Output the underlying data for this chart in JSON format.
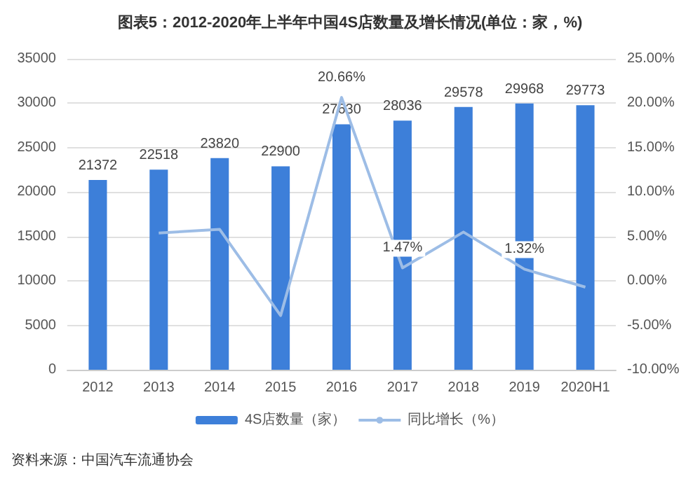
{
  "chart_data": {
    "type": "bar",
    "title": "图表5：2012-2020年上半年中国4S店数量及增长情况(单位：家，%)",
    "categories": [
      "2012",
      "2013",
      "2014",
      "2015",
      "2016",
      "2017",
      "2018",
      "2019",
      "2020H1"
    ],
    "series": [
      {
        "name": "4S店数量（家）",
        "color": "#3d7fd9",
        "values": [
          21372,
          22518,
          23820,
          22900,
          27630,
          28036,
          29578,
          29968,
          29773
        ],
        "value_labels": [
          "21372",
          "22518",
          "23820",
          "22900",
          "27630",
          "28036",
          "29578",
          "29968",
          "29773"
        ]
      },
      {
        "name": "同比增长（%）",
        "type": "line",
        "axis": "y2",
        "color": "#9dbde6",
        "values": [
          null,
          5.4,
          5.8,
          -3.9,
          20.66,
          1.47,
          5.5,
          1.32,
          -0.7
        ],
        "value_labels": [
          null,
          null,
          null,
          null,
          "20.66%",
          "1.47%",
          null,
          "1.32%",
          null
        ]
      }
    ],
    "ylim": [
      0,
      35000
    ],
    "yticks": [
      0,
      5000,
      10000,
      15000,
      20000,
      25000,
      30000,
      35000
    ],
    "y2lim": [
      -10,
      25
    ],
    "y2ticks": [
      {
        "value": -10,
        "label": "-10.00%"
      },
      {
        "value": -5,
        "label": "-5.00%"
      },
      {
        "value": 0,
        "label": "0.00%"
      },
      {
        "value": 5,
        "label": "5.00%"
      },
      {
        "value": 10,
        "label": "10.00%"
      },
      {
        "value": 15,
        "label": "15.00%"
      },
      {
        "value": 20,
        "label": "20.00%"
      },
      {
        "value": 25,
        "label": "25.00%"
      }
    ],
    "grid": "y",
    "legend": "bottom",
    "marker": "none",
    "annotations": [
      "资料来源：中国汽车流通协会"
    ]
  }
}
